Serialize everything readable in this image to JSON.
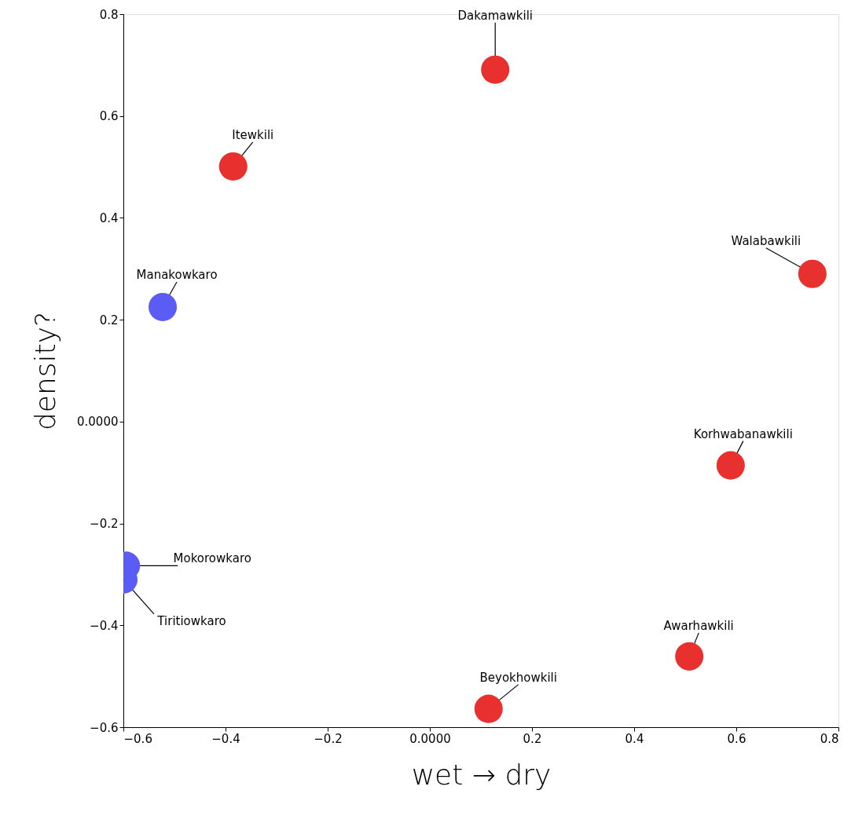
{
  "chart_data": {
    "type": "scatter",
    "xlabel": "wet → dry",
    "ylabel": "density?",
    "series": [
      {
        "color": "#e8302f",
        "x": [
          0.128,
          -0.385,
          0.749,
          0.589,
          0.508,
          0.115
        ],
        "values": [
          0.691,
          0.501,
          0.29,
          -0.086,
          -0.461,
          -0.564
        ]
      },
      {
        "color": "#5b5bf5",
        "x": [
          -0.523,
          -0.595,
          -0.6
        ],
        "values": [
          0.225,
          -0.283,
          -0.31
        ]
      }
    ],
    "annotations": [
      {
        "text": "Dakamawkili",
        "x": 0.128,
        "y": 0.691
      },
      {
        "text": "Itewkili",
        "x": -0.385,
        "y": 0.501
      },
      {
        "text": "Walabawkili",
        "x": 0.749,
        "y": 0.29
      },
      {
        "text": "Korhwabanawkili",
        "x": 0.589,
        "y": -0.086
      },
      {
        "text": "Awarhawkili",
        "x": 0.508,
        "y": -0.461
      },
      {
        "text": "Beyokhowkili",
        "x": 0.115,
        "y": -0.564
      },
      {
        "text": "Manakowkaro",
        "x": -0.523,
        "y": 0.225
      },
      {
        "text": "Mokorowkaro",
        "x": -0.595,
        "y": -0.283
      },
      {
        "text": "Tiritiowkaro",
        "x": -0.6,
        "y": -0.31
      }
    ],
    "xlim": [
      -0.6,
      0.8
    ],
    "ylim": [
      -0.6,
      0.8
    ],
    "xticks": [
      {
        "value": -0.6,
        "label": "−0.6"
      },
      {
        "value": -0.4,
        "label": "−0.4"
      },
      {
        "value": -0.2,
        "label": "−0.2"
      },
      {
        "value": 0,
        "label": "0.0000"
      },
      0.2,
      0.4,
      0.6,
      0.8
    ],
    "yticks": [
      {
        "value": -0.6,
        "label": "−0.6"
      },
      {
        "value": -0.4,
        "label": "−0.4"
      },
      {
        "value": -0.2,
        "label": "−0.2"
      },
      {
        "value": 0,
        "label": "0.0000"
      },
      0.2,
      0.4,
      0.6,
      0.8
    ],
    "grid": false,
    "marker": "circle"
  }
}
